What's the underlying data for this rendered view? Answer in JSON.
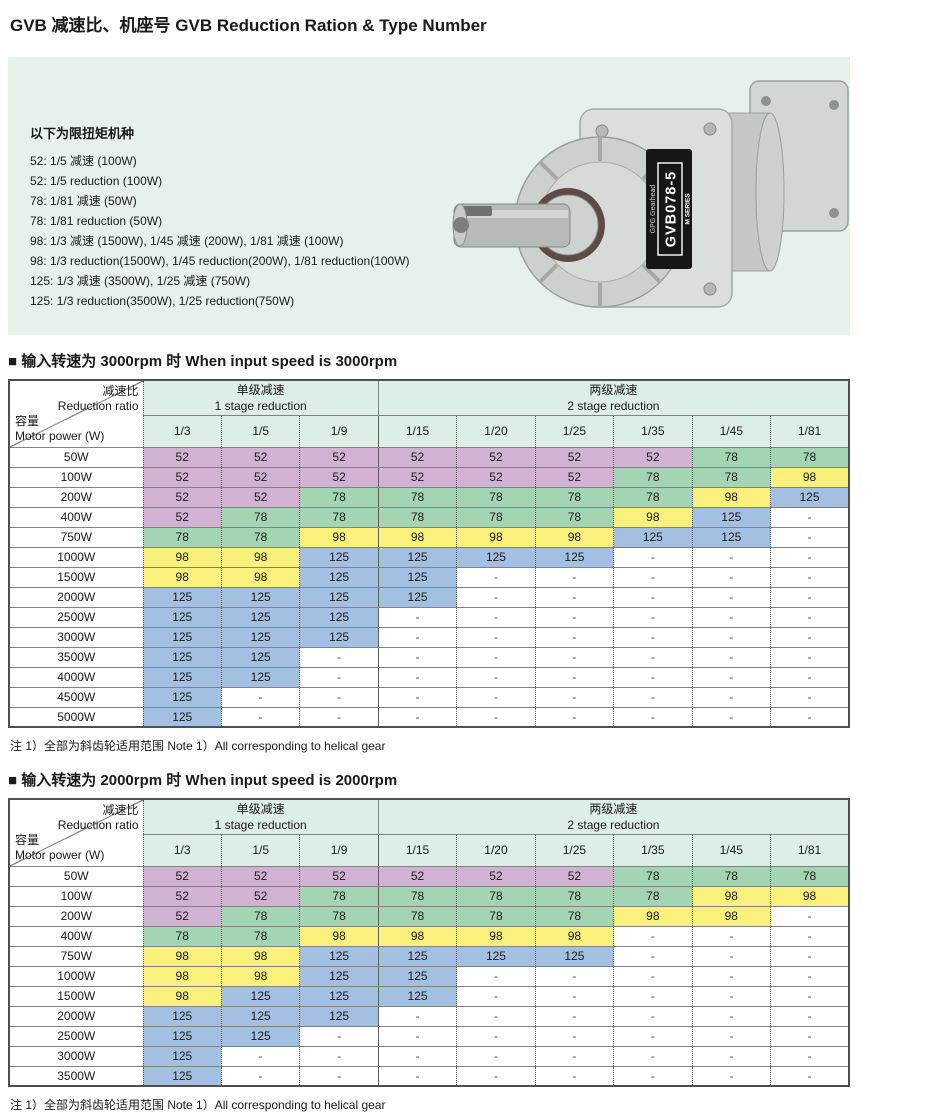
{
  "page": {
    "title": "GVB 减速比、机座号 GVB Reduction Ration & Type Number"
  },
  "panel": {
    "heading": "以下为限扭矩机种",
    "lines": [
      "52: 1/5 减速 (100W)",
      "52: 1/5 reduction (100W)",
      "78: 1/81 减速 (50W)",
      "78: 1/81 reduction (50W)",
      "98: 1/3 减速 (1500W), 1/45 减速 (200W), 1/81 减速 (100W)",
      "98: 1/3 reduction(1500W), 1/45 reduction(200W), 1/81 reduction(100W)",
      "125: 1/3 减速 (3500W), 1/25 减速 (750W)",
      "125: 1/3 reduction(3500W), 1/25 reduction(750W)"
    ],
    "product": {
      "label": "GVB078-5",
      "brand": "GPG Gearhead",
      "series": "M SERIES"
    }
  },
  "tables": [
    {
      "section_title": "■ 输入转速为 3000rpm 时 When input speed is 3000rpm",
      "header": {
        "corner_top": "减速比",
        "corner_top_en": "Reduction ratio",
        "corner_bottom": "容量",
        "corner_bottom_en": "Motor power (W)",
        "group1": "单级减速",
        "group1_en": "1 stage reduction",
        "group2": "两级减速",
        "group2_en": "2 stage reduction",
        "ratios": [
          "1/3",
          "1/5",
          "1/9",
          "1/15",
          "1/20",
          "1/25",
          "1/35",
          "1/45",
          "1/81"
        ]
      },
      "rows": [
        {
          "power": "50W",
          "values": [
            "52",
            "52",
            "52",
            "52",
            "52",
            "52",
            "52",
            "78",
            "78"
          ]
        },
        {
          "power": "100W",
          "values": [
            "52",
            "52",
            "52",
            "52",
            "52",
            "52",
            "78",
            "78",
            "98"
          ]
        },
        {
          "power": "200W",
          "values": [
            "52",
            "52",
            "78",
            "78",
            "78",
            "78",
            "78",
            "98",
            "125"
          ]
        },
        {
          "power": "400W",
          "values": [
            "52",
            "78",
            "78",
            "78",
            "78",
            "78",
            "98",
            "125",
            "-"
          ]
        },
        {
          "power": "750W",
          "values": [
            "78",
            "78",
            "98",
            "98",
            "98",
            "98",
            "125",
            "125",
            "-"
          ]
        },
        {
          "power": "1000W",
          "values": [
            "98",
            "98",
            "125",
            "125",
            "125",
            "125",
            "-",
            "-",
            "-"
          ]
        },
        {
          "power": "1500W",
          "values": [
            "98",
            "98",
            "125",
            "125",
            "-",
            "-",
            "-",
            "-",
            "-"
          ]
        },
        {
          "power": "2000W",
          "values": [
            "125",
            "125",
            "125",
            "125",
            "-",
            "-",
            "-",
            "-",
            "-"
          ]
        },
        {
          "power": "2500W",
          "values": [
            "125",
            "125",
            "125",
            "-",
            "-",
            "-",
            "-",
            "-",
            "-"
          ]
        },
        {
          "power": "3000W",
          "values": [
            "125",
            "125",
            "125",
            "-",
            "-",
            "-",
            "-",
            "-",
            "-"
          ]
        },
        {
          "power": "3500W",
          "values": [
            "125",
            "125",
            "-",
            "-",
            "-",
            "-",
            "-",
            "-",
            "-"
          ]
        },
        {
          "power": "4000W",
          "values": [
            "125",
            "125",
            "-",
            "-",
            "-",
            "-",
            "-",
            "-",
            "-"
          ]
        },
        {
          "power": "4500W",
          "values": [
            "125",
            "-",
            "-",
            "-",
            "-",
            "-",
            "-",
            "-",
            "-"
          ]
        },
        {
          "power": "5000W",
          "values": [
            "125",
            "-",
            "-",
            "-",
            "-",
            "-",
            "-",
            "-",
            "-"
          ]
        }
      ],
      "note": "注 1）全部为斜齿轮适用范围 Note 1）All corresponding to helical gear"
    },
    {
      "section_title": "■ 输入转速为 2000rpm 时 When input speed is 2000rpm",
      "header": {
        "corner_top": "减速比",
        "corner_top_en": "Reduction ratio",
        "corner_bottom": "容量",
        "corner_bottom_en": "Motor power (W)",
        "group1": "单级减速",
        "group1_en": "1 stage reduction",
        "group2": "两级减速",
        "group2_en": "2 stage reduction",
        "ratios": [
          "1/3",
          "1/5",
          "1/9",
          "1/15",
          "1/20",
          "1/25",
          "1/35",
          "1/45",
          "1/81"
        ]
      },
      "rows": [
        {
          "power": "50W",
          "values": [
            "52",
            "52",
            "52",
            "52",
            "52",
            "52",
            "78",
            "78",
            "78"
          ]
        },
        {
          "power": "100W",
          "values": [
            "52",
            "52",
            "78",
            "78",
            "78",
            "78",
            "78",
            "98",
            "98"
          ]
        },
        {
          "power": "200W",
          "values": [
            "52",
            "78",
            "78",
            "78",
            "78",
            "78",
            "98",
            "98",
            "-"
          ]
        },
        {
          "power": "400W",
          "values": [
            "78",
            "78",
            "98",
            "98",
            "98",
            "98",
            "-",
            "-",
            "-"
          ]
        },
        {
          "power": "750W",
          "values": [
            "98",
            "98",
            "125",
            "125",
            "125",
            "125",
            "-",
            "-",
            "-"
          ]
        },
        {
          "power": "1000W",
          "values": [
            "98",
            "98",
            "125",
            "125",
            "-",
            "-",
            "-",
            "-",
            "-"
          ]
        },
        {
          "power": "1500W",
          "values": [
            "98",
            "125",
            "125",
            "125",
            "-",
            "-",
            "-",
            "-",
            "-"
          ]
        },
        {
          "power": "2000W",
          "values": [
            "125",
            "125",
            "125",
            "-",
            "-",
            "-",
            "-",
            "-",
            "-"
          ]
        },
        {
          "power": "2500W",
          "values": [
            "125",
            "125",
            "-",
            "-",
            "-",
            "-",
            "-",
            "-",
            "-"
          ]
        },
        {
          "power": "3000W",
          "values": [
            "125",
            "-",
            "-",
            "-",
            "-",
            "-",
            "-",
            "-",
            "-"
          ]
        },
        {
          "power": "3500W",
          "values": [
            "125",
            "-",
            "-",
            "-",
            "-",
            "-",
            "-",
            "-",
            "-"
          ]
        }
      ],
      "note": "注 1）全部为斜齿轮适用范围 Note 1）All corresponding to helical gear"
    }
  ],
  "colors": {
    "type52": "#d2b2d2",
    "type78": "#a3d4b3",
    "type98": "#faf17c",
    "type125": "#a3bfe2",
    "header_bg": "#ddeee5",
    "panel_bg": "#e6f1ea",
    "empty": "#ffffff"
  }
}
